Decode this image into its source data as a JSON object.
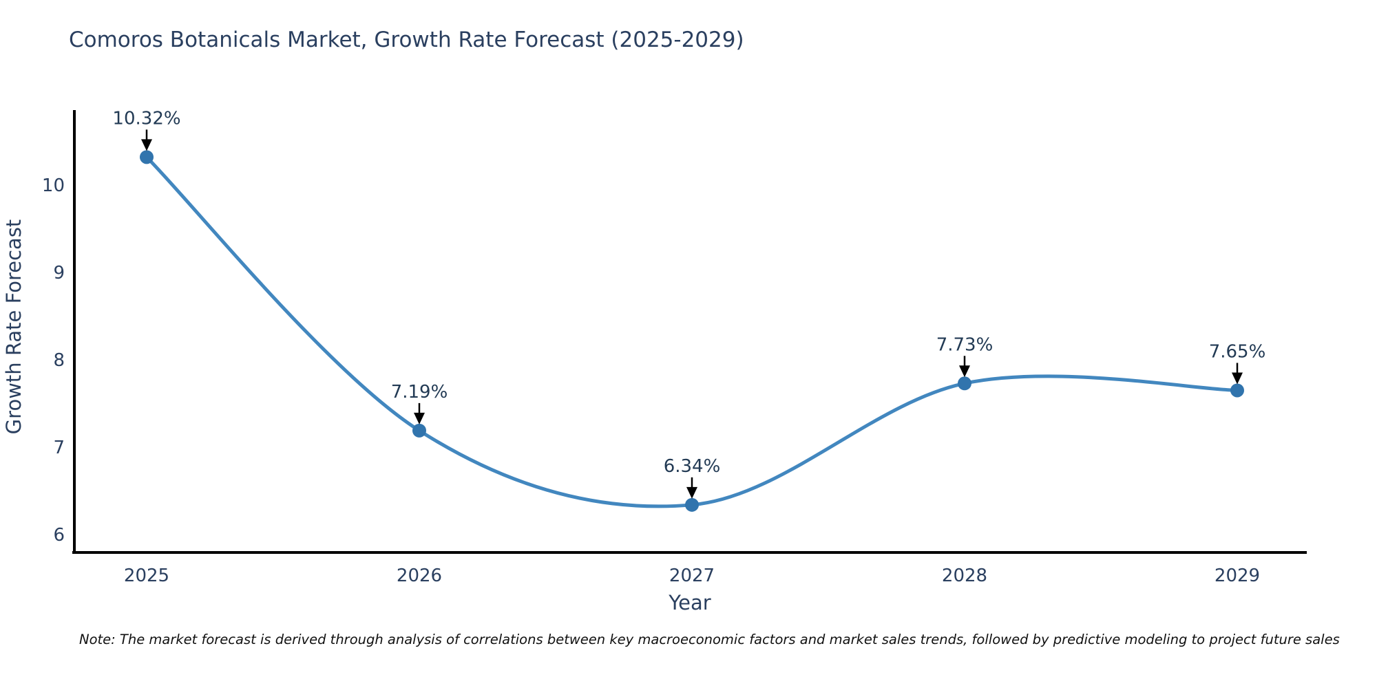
{
  "title": "Comoros Botanicals Market, Growth Rate Forecast (2025-2029)",
  "note": "Note: The market forecast is derived through analysis of correlations between key macroeconomic factors and market sales trends, followed by predictive modeling to project future sales",
  "chart_data": {
    "type": "line",
    "title": "Comoros Botanicals Market, Growth Rate Forecast (2025-2029)",
    "x": [
      "2025",
      "2026",
      "2027",
      "2028",
      "2029"
    ],
    "values": [
      10.32,
      7.19,
      6.34,
      7.73,
      7.65
    ],
    "point_labels": [
      "10.32%",
      "7.19%",
      "6.34%",
      "7.73%",
      "7.65%"
    ],
    "xlabel": "Year",
    "ylabel": "Growth Rate Forecast",
    "y_ticks": [
      6,
      7,
      8,
      9,
      10
    ],
    "ylim": [
      5.8,
      10.9
    ],
    "line_shape": "spline",
    "grid": false,
    "legend_position": "none",
    "colors": {
      "line": "#4287bf",
      "marker": "#3174ad",
      "axis": "#000000",
      "font": "#2a3f5f",
      "annotation_text": "#223a54",
      "annotation_arrow": "#000000",
      "note_text": "#111111",
      "background": "#ffffff"
    }
  }
}
